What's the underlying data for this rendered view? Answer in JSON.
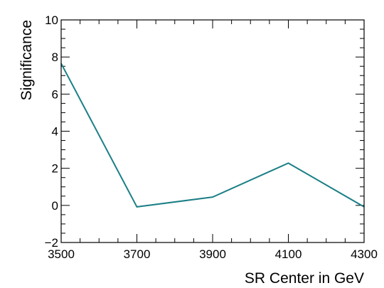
{
  "chart_data": {
    "type": "line",
    "title": "",
    "xlabel": "SR Center in GeV",
    "ylabel": "Significance",
    "xlim": [
      3500,
      4300
    ],
    "ylim": [
      -2,
      10
    ],
    "xticks": [
      3500,
      3700,
      3900,
      4100,
      4300
    ],
    "yticks": [
      -2,
      0,
      2,
      4,
      6,
      8,
      10
    ],
    "xtick_labels": [
      "3500",
      "3700",
      "3900",
      "4100",
      "4300"
    ],
    "ytick_labels": [
      "−2",
      "0",
      "2",
      "4",
      "6",
      "8",
      "10"
    ],
    "grid": false,
    "legend": "none",
    "series": [
      {
        "x": [
          3500,
          3700,
          3900,
          4100,
          4300
        ],
        "y": [
          7.65,
          -0.08,
          0.45,
          2.28,
          -0.08
        ],
        "color": "#1b7f86"
      }
    ]
  }
}
